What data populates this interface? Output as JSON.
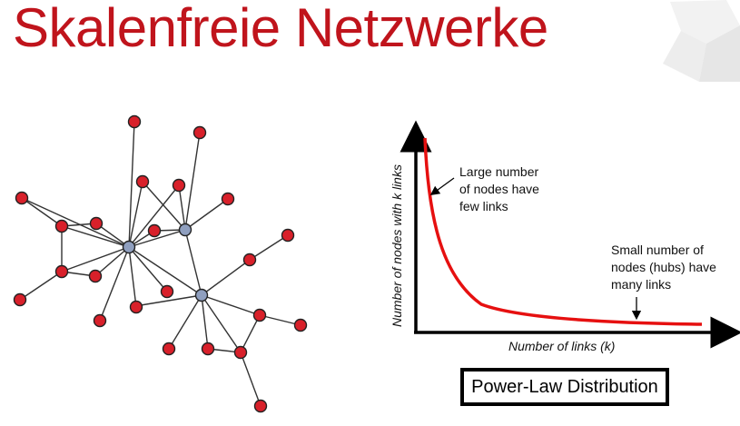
{
  "slide": {
    "title": "Skalenfreie Netzwerke"
  },
  "colors": {
    "title": "#c0141c",
    "node_fill": "#d8202a",
    "hub_fill": "#8f9fbf",
    "curve": "#e61010"
  },
  "network": {
    "hubs": 3,
    "nodes": 33
  },
  "plot": {
    "ylabel": "Number of nodes with k links",
    "xlabel": "Number of links (k)",
    "annotation_left": [
      "Large number",
      "of nodes have",
      "few links"
    ],
    "annotation_right": [
      "Small number of",
      "nodes (hubs) have",
      "many links"
    ],
    "box_label": "Power-Law Distribution"
  }
}
